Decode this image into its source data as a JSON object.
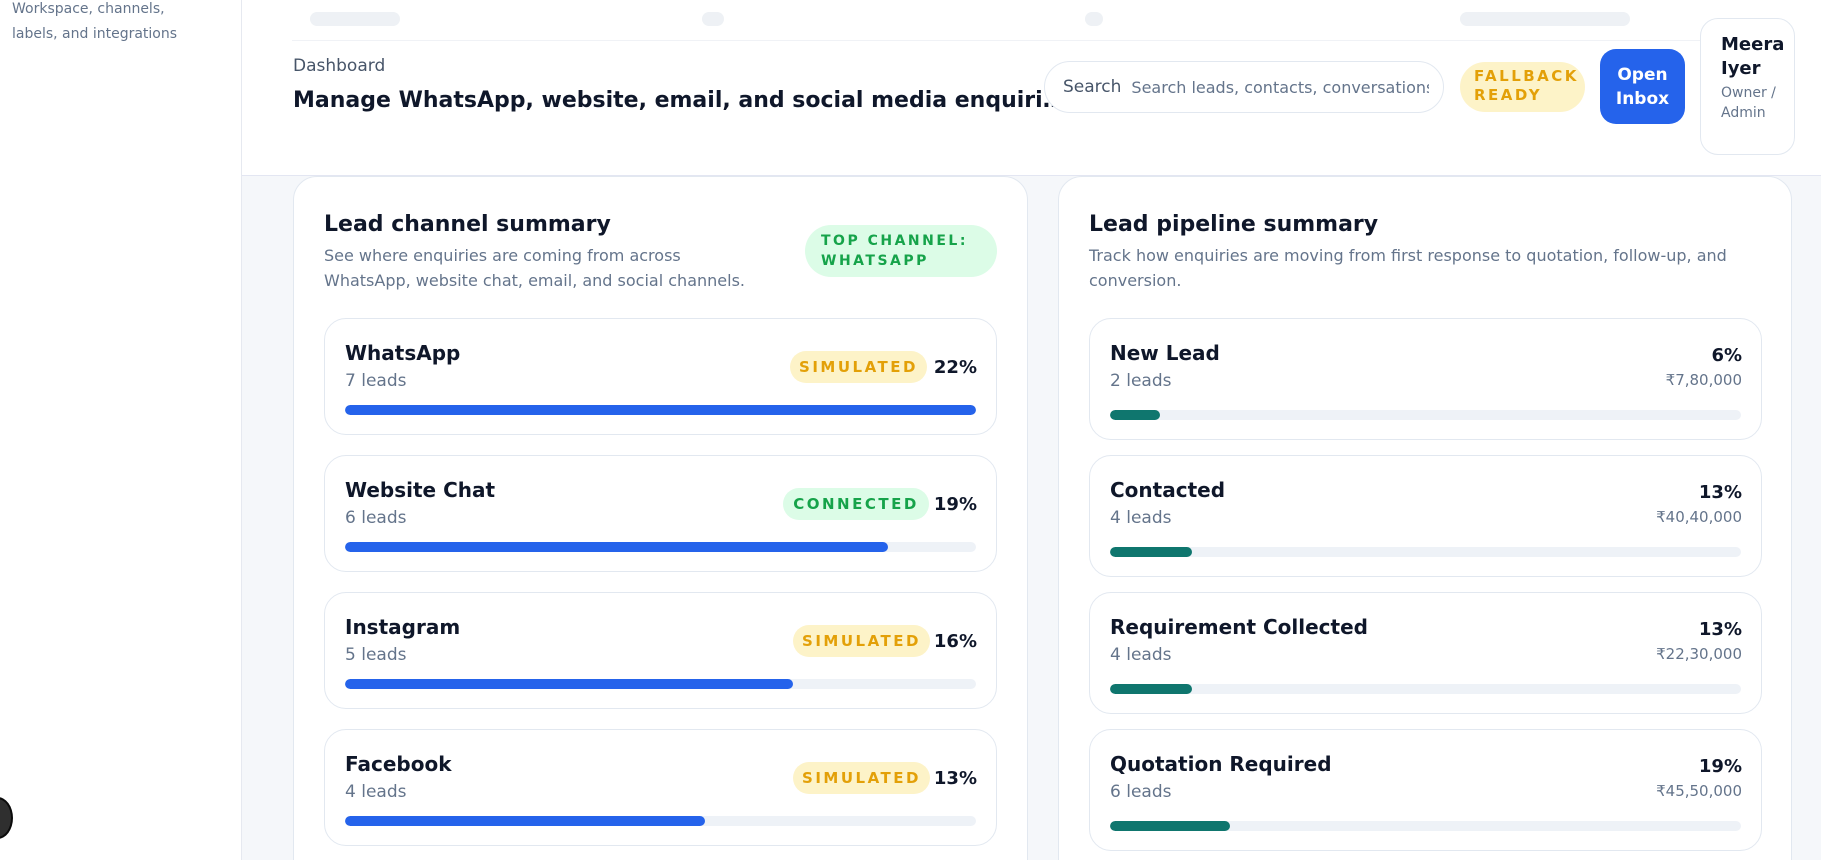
{
  "sidebar": {
    "caption": "Workspace, channels, labels, and integrations"
  },
  "header": {
    "eyebrow": "Dashboard",
    "title": "Manage WhatsApp, website, email, and social media enquiries from one place",
    "search": {
      "label": "Search",
      "placeholder": "Search leads, contacts, conversations..."
    },
    "status_badge": "FALLBACK READY",
    "open_inbox_label": "Open Inbox",
    "user": {
      "name": "Meera Iyer",
      "role": "Owner / Admin"
    }
  },
  "channel_summary": {
    "title": "Lead channel summary",
    "subtitle": "See where enquiries are coming from across WhatsApp, website chat, email, and social channels.",
    "top_badge": "TOP CHANNEL: WHATSAPP",
    "items": [
      {
        "name": "WhatsApp",
        "count": "7 leads",
        "status": "SIMULATED",
        "percent": "22%",
        "fill": 1.0
      },
      {
        "name": "Website Chat",
        "count": "6 leads",
        "status": "CONNECTED",
        "percent": "19%",
        "fill": 0.86
      },
      {
        "name": "Instagram",
        "count": "5 leads",
        "status": "SIMULATED",
        "percent": "16%",
        "fill": 0.71
      },
      {
        "name": "Facebook",
        "count": "4 leads",
        "status": "SIMULATED",
        "percent": "13%",
        "fill": 0.57
      }
    ]
  },
  "pipeline_summary": {
    "title": "Lead pipeline summary",
    "subtitle": "Track how enquiries are moving from first response to quotation, follow-up, and conversion.",
    "items": [
      {
        "name": "New Lead",
        "count": "2 leads",
        "percent": "6%",
        "amount": "₹7,80,000",
        "fill": 0.08
      },
      {
        "name": "Contacted",
        "count": "4 leads",
        "percent": "13%",
        "amount": "₹40,40,000",
        "fill": 0.13
      },
      {
        "name": "Requirement Collected",
        "count": "4 leads",
        "percent": "13%",
        "amount": "₹22,30,000",
        "fill": 0.13
      },
      {
        "name": "Quotation Required",
        "count": "6 leads",
        "percent": "19%",
        "amount": "₹45,50,000",
        "fill": 0.19
      }
    ]
  },
  "colors": {
    "accent": "#2563eb",
    "pipeline_bar": "#0f766e",
    "simulated": "#e3a008",
    "connected": "#16a34a"
  }
}
